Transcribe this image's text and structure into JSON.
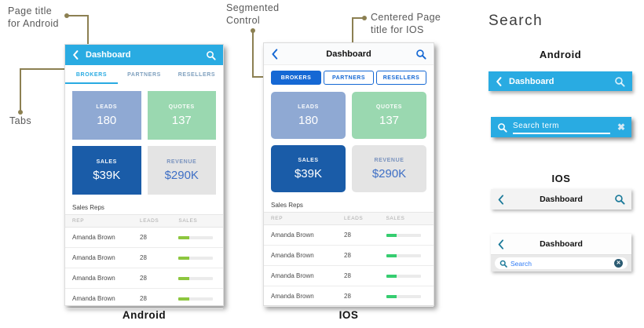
{
  "annotations": {
    "page_title_android": {
      "line1": "Page title",
      "line2": "for Android"
    },
    "tabs_label": "Tabs",
    "segmented_control": {
      "line1": "Segmented",
      "line2": "Control"
    },
    "centered_title_ios": {
      "line1": "Centered Page",
      "line2": "title for IOS"
    }
  },
  "android": {
    "platform_label": "Android",
    "header": {
      "title": "Dashboard"
    },
    "tabs": [
      "BROKERS",
      "PARTNERS",
      "RESELLERS"
    ],
    "active_tab": "BROKERS",
    "tiles": [
      {
        "label": "LEADS",
        "value": "180",
        "bg": "#8fa9d3"
      },
      {
        "label": "QUOTES",
        "value": "137",
        "bg": "#9ad8b0"
      },
      {
        "label": "SALES",
        "value": "$39K",
        "bg": "#1a5ca8"
      },
      {
        "label": "REVENUE",
        "value": "$290K",
        "bg": "#e4e4e4"
      }
    ],
    "sales_reps": {
      "title": "Sales Reps",
      "columns": [
        "REP",
        "LEADS",
        "SALES"
      ],
      "rows": [
        {
          "rep": "Amanda Brown",
          "leads": "28",
          "progress_pct": 30
        },
        {
          "rep": "Amanda Brown",
          "leads": "28",
          "progress_pct": 30
        },
        {
          "rep": "Amanda Brown",
          "leads": "28",
          "progress_pct": 30
        },
        {
          "rep": "Amanda Brown",
          "leads": "28",
          "progress_pct": 30
        }
      ]
    }
  },
  "ios": {
    "platform_label": "IOS",
    "header": {
      "title": "Dashboard"
    },
    "tabs": [
      "BROKERS",
      "PARTNERS",
      "RESELLERS"
    ],
    "active_tab": "BROKERS",
    "tiles": [
      {
        "label": "LEADS",
        "value": "180",
        "bg": "#8fa9d3"
      },
      {
        "label": "QUOTES",
        "value": "137",
        "bg": "#9ad8b0"
      },
      {
        "label": "SALES",
        "value": "$39K",
        "bg": "#1a5ca8"
      },
      {
        "label": "REVENUE",
        "value": "$290K",
        "bg": "#e4e4e4"
      }
    ],
    "sales_reps": {
      "title": "Sales Reps",
      "columns": [
        "REP",
        "LEADS",
        "SALES"
      ],
      "rows": [
        {
          "rep": "Amanda Brown",
          "leads": "28",
          "progress_pct": 30
        },
        {
          "rep": "Amanda Brown",
          "leads": "28",
          "progress_pct": 30
        },
        {
          "rep": "Amanda Brown",
          "leads": "28",
          "progress_pct": 30
        },
        {
          "rep": "Amanda Brown",
          "leads": "28",
          "progress_pct": 30
        }
      ]
    }
  },
  "search_section": {
    "title": "Search",
    "android": {
      "heading": "Android",
      "nav_bar": {
        "title": "Dashboard"
      },
      "search_bar": {
        "term": "Search term"
      }
    },
    "ios": {
      "heading": "IOS",
      "nav_bar": {
        "title": "Dashboard"
      },
      "search_combo": {
        "title": "Dashboard",
        "placeholder": "Search"
      }
    }
  },
  "icons": {
    "back": "chevron-left-icon",
    "search": "search-icon",
    "clear": "x-icon",
    "clear_circle": "circle-x-icon"
  },
  "colors": {
    "android_accent": "#29abe2",
    "ios_accent": "#1568d4",
    "ios_teal": "#1b7a9a",
    "tile_leads": "#8fa9d3",
    "tile_quotes": "#9ad8b0",
    "tile_sales": "#1a5ca8",
    "tile_revenue": "#e4e4e4",
    "progress_android": "#8dc63f",
    "progress_ios": "#36cd70",
    "annotation_line": "#8c8052",
    "annotation_text": "#595959"
  }
}
